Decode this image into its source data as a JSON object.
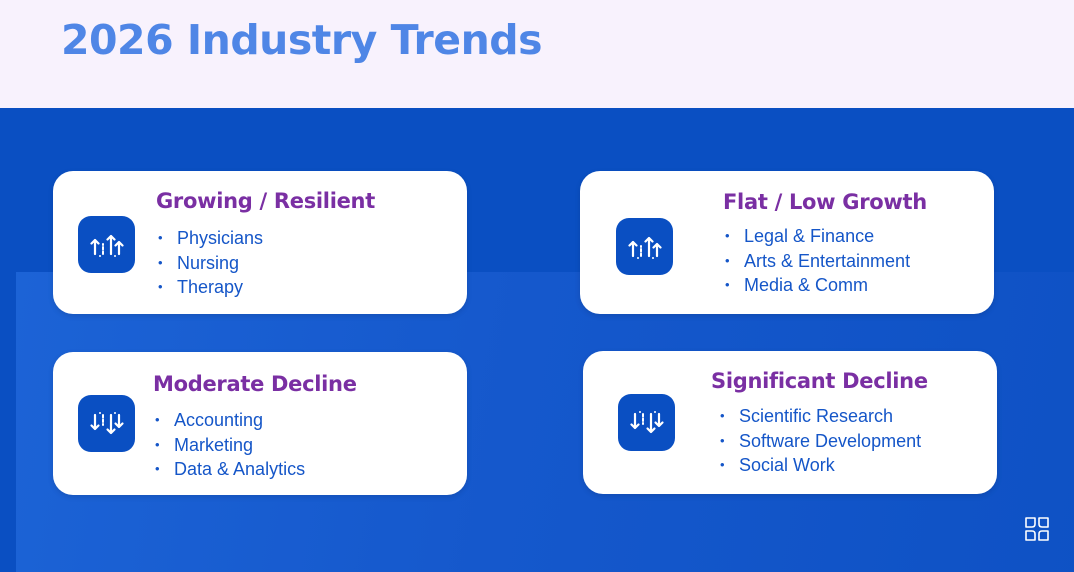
{
  "header": {
    "title": "2026 Industry Trends"
  },
  "colors": {
    "header_background": "#f8f2fd",
    "title_color": "#4f86e6",
    "main_background": "#0a4fc2",
    "card_background": "#ffffff",
    "card_title_color": "#7a2fa3",
    "card_text_color": "#1556c8",
    "icon_tile_color": "#0a4fc2"
  },
  "cards": [
    {
      "title": "Growing / Resilient",
      "icon": "trend-up-icon",
      "items": [
        "Physicians",
        "Nursing",
        "Therapy"
      ]
    },
    {
      "title": "Flat / Low Growth",
      "icon": "trend-up-icon",
      "items": [
        "Legal & Finance",
        "Arts & Entertainment",
        "Media & Comm"
      ]
    },
    {
      "title": "Moderate Decline",
      "icon": "trend-down-icon",
      "items": [
        "Accounting",
        "Marketing",
        "Data & Analytics"
      ]
    },
    {
      "title": "Significant Decline",
      "icon": "trend-down-icon",
      "items": [
        "Scientific Research",
        "Software Development",
        "Social Work"
      ]
    }
  ],
  "footer": {
    "logo_icon": "brand-logo-icon"
  }
}
